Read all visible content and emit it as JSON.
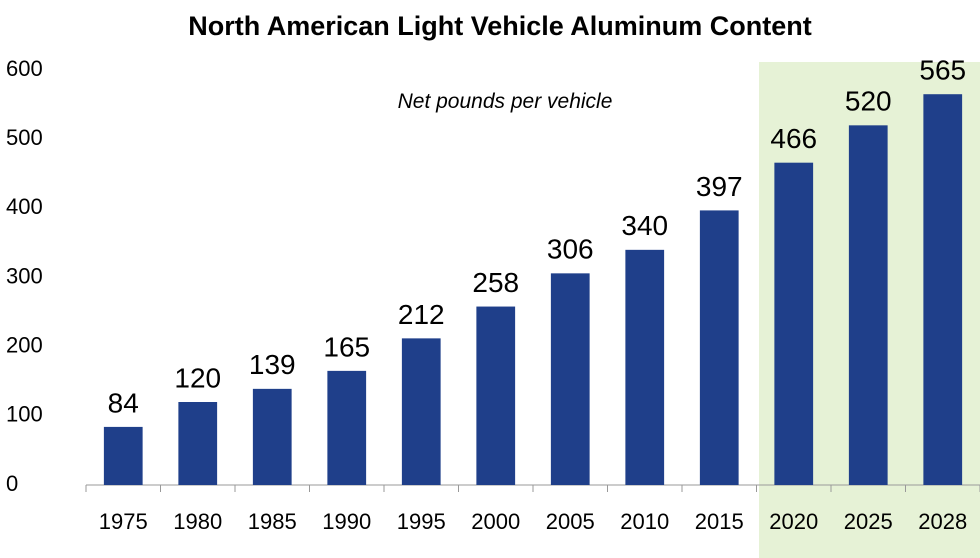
{
  "chart_data": {
    "type": "bar",
    "title": "North American Light Vehicle Aluminum Content",
    "subtitle": "Net pounds per vehicle",
    "categories": [
      "1975",
      "1980",
      "1985",
      "1990",
      "1995",
      "2000",
      "2005",
      "2010",
      "2015",
      "2020",
      "2025",
      "2028"
    ],
    "values": [
      84,
      120,
      139,
      165,
      212,
      258,
      306,
      340,
      397,
      466,
      520,
      565
    ],
    "color": "#1f3f8a",
    "ylim": [
      0,
      600
    ],
    "yticks": [
      0,
      100,
      200,
      300,
      400,
      500,
      600
    ],
    "grid": false
  }
}
